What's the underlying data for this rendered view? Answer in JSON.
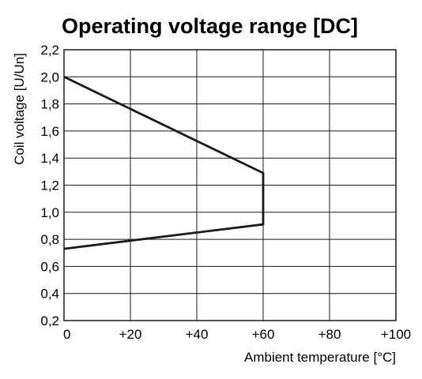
{
  "chart_data": {
    "type": "line",
    "title": "Operating voltage range [DC]",
    "xlabel": "Ambient temperature [°C]",
    "ylabel": "Coil voltage [U/Un]",
    "xlim": [
      0,
      100
    ],
    "ylim": [
      0.2,
      2.2
    ],
    "x_ticks": [
      0,
      20,
      40,
      60,
      80,
      100
    ],
    "x_tick_labels": [
      "0",
      "+20",
      "+40",
      "+60",
      "+80",
      "+100"
    ],
    "y_ticks": [
      0.2,
      0.4,
      0.6,
      0.8,
      1.0,
      1.2,
      1.4,
      1.6,
      1.8,
      2.0,
      2.2
    ],
    "y_tick_labels": [
      "0,2",
      "0,4",
      "0,6",
      "0,8",
      "1,0",
      "1,2",
      "1,4",
      "1,6",
      "1,8",
      "2,0",
      "2,2"
    ],
    "grid": true,
    "series": [
      {
        "x": [
          0,
          60,
          60,
          0
        ],
        "y": [
          2.0,
          1.29,
          0.91,
          0.73
        ]
      }
    ],
    "line_color": "#1a1a1a",
    "grid_color": "#1a1a1a"
  }
}
